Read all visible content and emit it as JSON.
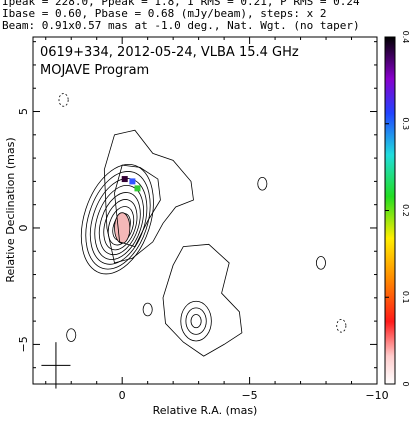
{
  "header": {
    "line1": "Ipeak = 228.0, Ppeak = 1.8, I RMS = 0.21, P RMS = 0.24",
    "line2": "Ibase = 0.60, Pbase = 0.68 (mJy/beam), steps: x 2",
    "line3": "Beam: 0.91x0.57 mas at -1.0 deg., Nat. Wgt. (no taper)"
  },
  "chart_data": {
    "type": "contour",
    "title": "0619+334, 2012-05-24, VLBA 15.4 GHz",
    "subtitle": "MOJAVE Program",
    "xlabel": "Relative R.A. (mas)",
    "ylabel": "Relative Declination (mas)",
    "xlim": [
      3.5,
      -10
    ],
    "ylim": [
      -6.7,
      8.2
    ],
    "x_ticks": [
      0,
      -5,
      -10
    ],
    "y_ticks": [
      -5,
      0,
      5
    ],
    "colorbar": {
      "ticks": [
        0,
        0.1,
        0.2,
        0.3,
        0.4
      ],
      "range": [
        0,
        0.4
      ]
    },
    "core": {
      "x": 0.0,
      "y": 0.0
    },
    "polarization_vectors": [
      {
        "x": -0.1,
        "y": 2.1,
        "color": "#330033"
      },
      {
        "x": -0.4,
        "y": 2.0,
        "color": "#3355ff"
      },
      {
        "x": -0.6,
        "y": 1.7,
        "color": "#33cc33"
      }
    ],
    "beam": {
      "major": 0.91,
      "minor": 0.57,
      "pa": -1.0
    }
  }
}
